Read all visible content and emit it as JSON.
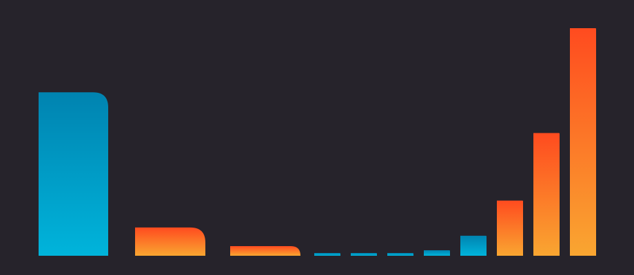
{
  "colors": {
    "background": "#26232b",
    "blue_top": "#0083b0",
    "blue_bottom": "#00b4db",
    "orange_top": "#ff4b1f",
    "orange_bottom": "#f9a631"
  },
  "chart_data": {
    "type": "bar",
    "title": "",
    "xlabel": "",
    "ylabel": "",
    "grid": false,
    "legend": "none",
    "ylim": [
      0,
      330
    ],
    "bars": [
      {
        "value": 237,
        "color": "blue"
      },
      {
        "value": 41,
        "color": "orange"
      },
      {
        "value": 14,
        "color": "orange"
      },
      {
        "value": 4,
        "color": "blue"
      },
      {
        "value": 4,
        "color": "blue"
      },
      {
        "value": 4,
        "color": "blue"
      },
      {
        "value": 8,
        "color": "blue"
      },
      {
        "value": 29,
        "color": "blue"
      },
      {
        "value": 80,
        "color": "orange"
      },
      {
        "value": 178,
        "color": "orange"
      },
      {
        "value": 330,
        "color": "orange"
      }
    ]
  }
}
